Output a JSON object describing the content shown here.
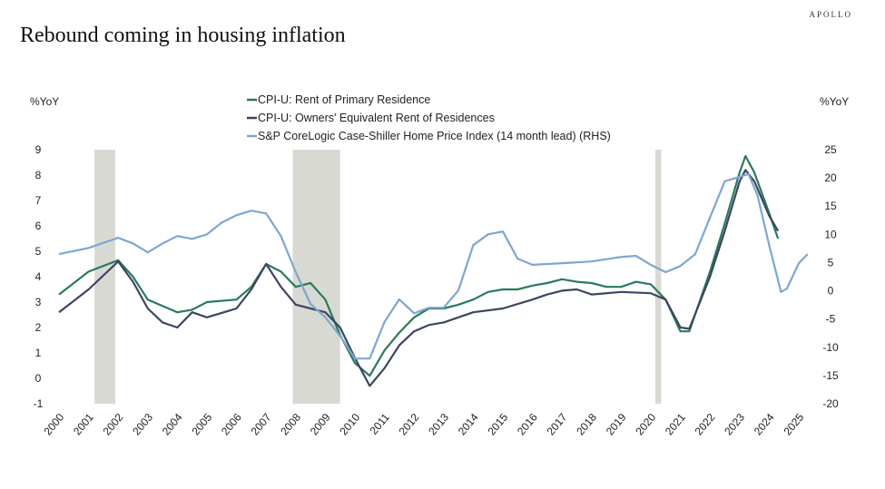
{
  "brand": "APOLLO",
  "title": "Rebound coming in housing inflation",
  "chart_data": {
    "type": "line",
    "title": "Rebound coming in housing inflation",
    "ylabel_left": "%YoY",
    "ylabel_right": "%YoY",
    "xlim": [
      2000,
      2025.5
    ],
    "ylim_left": [
      -1,
      9
    ],
    "ylim_right": [
      -20,
      25
    ],
    "x_ticks": [
      "2000",
      "2001",
      "2002",
      "2003",
      "2004",
      "2005",
      "2006",
      "2007",
      "2008",
      "2009",
      "2010",
      "2011",
      "2012",
      "2013",
      "2014",
      "2015",
      "2016",
      "2017",
      "2018",
      "2019",
      "2020",
      "2021",
      "2022",
      "2023",
      "2024",
      "2025"
    ],
    "y_ticks_left": [
      9,
      8,
      7,
      6,
      5,
      4,
      3,
      2,
      1,
      0,
      -1
    ],
    "y_ticks_right": [
      25,
      20,
      15,
      10,
      5,
      0,
      -5,
      -10,
      -15,
      -20
    ],
    "legend_position": "top-center",
    "grid": false,
    "recessions": [
      [
        2001.2,
        2001.9
      ],
      [
        2007.9,
        2009.5
      ],
      [
        2020.15,
        2020.35
      ]
    ],
    "series": [
      {
        "name": "CPI-U: Rent of Primary Residence",
        "axis": "left",
        "color": "#2a7a5c",
        "x": [
          2000,
          2001,
          2002,
          2002.5,
          2003,
          2004,
          2004.5,
          2005,
          2006,
          2006.5,
          2007,
          2007.5,
          2008,
          2008.5,
          2009,
          2009.5,
          2010,
          2010.5,
          2011,
          2011.5,
          2012,
          2012.5,
          2013,
          2013.5,
          2014,
          2014.5,
          2015,
          2015.5,
          2016,
          2016.5,
          2017,
          2017.5,
          2018,
          2018.5,
          2019,
          2019.5,
          2020,
          2020.5,
          2021,
          2021.3,
          2022,
          2022.5,
          2023,
          2023.2,
          2023.5,
          2024,
          2024.3
        ],
        "y": [
          3.3,
          4.2,
          4.65,
          4.0,
          3.1,
          2.6,
          2.7,
          3.0,
          3.1,
          3.6,
          4.5,
          4.2,
          3.6,
          3.75,
          3.1,
          1.7,
          0.6,
          0.1,
          1.1,
          1.8,
          2.4,
          2.75,
          2.75,
          2.9,
          3.1,
          3.4,
          3.5,
          3.5,
          3.65,
          3.75,
          3.9,
          3.8,
          3.75,
          3.6,
          3.6,
          3.8,
          3.7,
          3.1,
          1.85,
          1.85,
          4.2,
          6.1,
          8.1,
          8.75,
          8.1,
          6.5,
          5.5
        ]
      },
      {
        "name": "CPI-U: Owners' Equivalent Rent of Residences",
        "axis": "left",
        "color": "#3b4660",
        "x": [
          2000,
          2001,
          2002,
          2002.5,
          2003,
          2003.5,
          2004,
          2004.5,
          2005,
          2006,
          2006.5,
          2007,
          2007.5,
          2008,
          2008.5,
          2009,
          2009.5,
          2010,
          2010.5,
          2011,
          2011.5,
          2012,
          2012.5,
          2013,
          2014,
          2015,
          2016,
          2016.5,
          2017,
          2017.5,
          2018,
          2019,
          2020,
          2020.5,
          2021,
          2021.3,
          2022,
          2022.5,
          2023,
          2023.2,
          2023.5,
          2024,
          2024.3
        ],
        "y": [
          2.6,
          3.5,
          4.6,
          3.8,
          2.75,
          2.2,
          2.0,
          2.6,
          2.4,
          2.75,
          3.5,
          4.5,
          3.6,
          2.9,
          2.75,
          2.6,
          2.0,
          0.8,
          -0.3,
          0.4,
          1.3,
          1.85,
          2.1,
          2.2,
          2.6,
          2.75,
          3.1,
          3.3,
          3.45,
          3.5,
          3.3,
          3.4,
          3.35,
          3.1,
          2.0,
          1.95,
          4.0,
          5.8,
          7.75,
          8.2,
          7.75,
          6.4,
          5.8
        ]
      },
      {
        "name": "S&P CoreLogic Case-Shiller Home Price Index (14 month lead) (RHS)",
        "axis": "right",
        "color": "#7ea6d0",
        "x": [
          2000,
          2001,
          2002,
          2002.5,
          2003,
          2003.5,
          2004,
          2004.5,
          2005,
          2005.5,
          2006,
          2006.5,
          2007,
          2007.5,
          2008,
          2008.5,
          2009,
          2009.5,
          2010,
          2010.5,
          2011,
          2011.5,
          2012,
          2012.5,
          2013,
          2013.5,
          2014,
          2014.5,
          2015,
          2015.5,
          2016,
          2017,
          2018,
          2019,
          2019.5,
          2020,
          2020.5,
          2021,
          2021.5,
          2022,
          2022.5,
          2023,
          2023.3,
          2023.6,
          2024,
          2024.4,
          2024.6,
          2025,
          2025.3
        ],
        "y": [
          6.5,
          7.6,
          9.4,
          8.4,
          6.8,
          8.4,
          9.7,
          9.2,
          10,
          12.1,
          13.4,
          14.2,
          13.7,
          9.7,
          3.3,
          -2.3,
          -4.7,
          -8,
          -12,
          -12,
          -5.5,
          -1.5,
          -4,
          -3,
          -3,
          0.1,
          8.1,
          10,
          10.5,
          5.7,
          4.6,
          4.9,
          5.2,
          6,
          6.2,
          4.6,
          3.3,
          4.4,
          6.5,
          13,
          19.4,
          20.2,
          20.7,
          17,
          8.1,
          -0.2,
          0.4,
          4.9,
          6.5
        ]
      }
    ]
  }
}
